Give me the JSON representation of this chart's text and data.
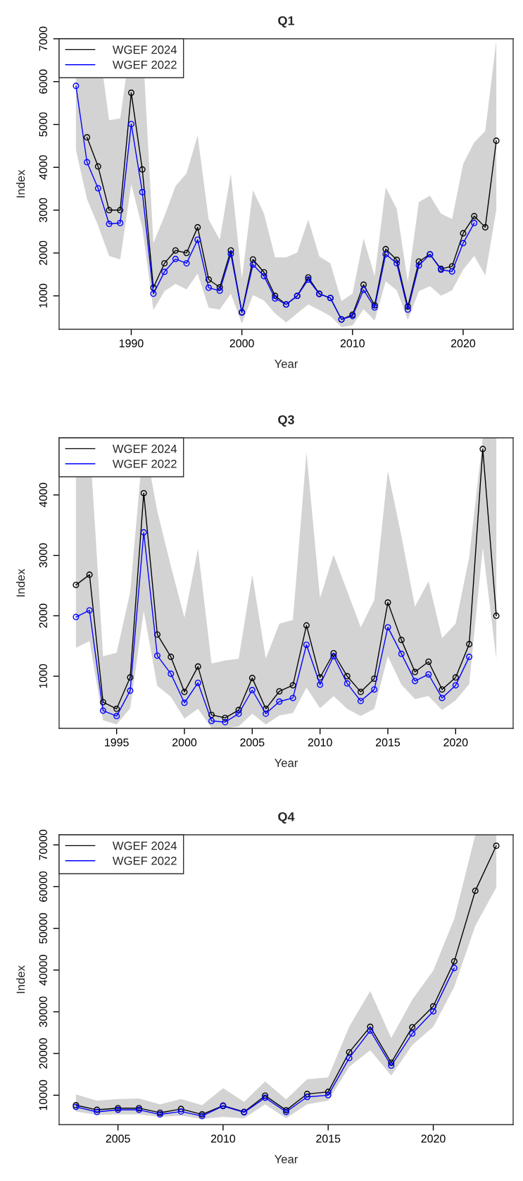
{
  "chart_data": [
    {
      "type": "line",
      "title": "Q1",
      "xlabel": "Year",
      "ylabel": "Index",
      "xlim": [
        1983.48,
        2024.52
      ],
      "ylim": [
        220,
        7000
      ],
      "xticks": [
        1990,
        2000,
        2010,
        2020
      ],
      "yticks": [
        1000,
        2000,
        3000,
        4000,
        5000,
        6000,
        7000
      ],
      "legend": "top left",
      "marker": "circle",
      "grid": false,
      "series": [
        {
          "name": "WGEF 2024",
          "color": "#000000",
          "x": [
            1985,
            1986,
            1987,
            1988,
            1989,
            1990,
            1991,
            1992,
            1993,
            1994,
            1995,
            1996,
            1997,
            1998,
            1999,
            2000,
            2001,
            2002,
            2003,
            2004,
            2005,
            2006,
            2007,
            2008,
            2009,
            2010,
            2011,
            2012,
            2013,
            2014,
            2015,
            2016,
            2017,
            2018,
            2019,
            2020,
            2021,
            2022,
            2023
          ],
          "values": [
            null,
            4700,
            4020,
            3000,
            3000,
            5740,
            3950,
            1190,
            1760,
            2060,
            2000,
            2600,
            1380,
            1200,
            2060,
            620,
            1850,
            1550,
            1000,
            800,
            1000,
            1430,
            1050,
            950,
            450,
            560,
            1260,
            780,
            2090,
            1840,
            750,
            1800,
            1970,
            1630,
            1690,
            2460,
            2860,
            2600,
            4620
          ],
          "lower": [
            4400,
            3260,
            2640,
            1930,
            1850,
            3600,
            2590,
            670,
            1110,
            1280,
            1150,
            1520,
            720,
            680,
            1050,
            350,
            1020,
            890,
            590,
            380,
            590,
            800,
            670,
            530,
            270,
            310,
            690,
            420,
            1340,
            1130,
            440,
            1110,
            1230,
            1000,
            1130,
            1610,
            1930,
            1480,
            3010
          ],
          "upper": [
            7000,
            7000,
            7000,
            5100,
            5140,
            7000,
            7000,
            2230,
            2860,
            3560,
            3860,
            4740,
            2780,
            2310,
            3850,
            1400,
            3460,
            2920,
            1900,
            1900,
            2010,
            2780,
            1920,
            1760,
            880,
            1050,
            2340,
            1460,
            3530,
            3030,
            1320,
            3190,
            3340,
            2920,
            2790,
            4080,
            4580,
            4850,
            6960
          ]
        },
        {
          "name": "WGEF 2022",
          "color": "#0000ff",
          "x": [
            1985,
            1986,
            1987,
            1988,
            1989,
            1990,
            1991,
            1992,
            1993,
            1994,
            1995,
            1996,
            1997,
            1998,
            1999,
            2000,
            2001,
            2002,
            2003,
            2004,
            2005,
            2006,
            2007,
            2008,
            2009,
            2010,
            2011,
            2012,
            2013,
            2014,
            2015,
            2016,
            2017,
            2018,
            2019,
            2020,
            2021
          ],
          "values": [
            5900,
            4120,
            3510,
            2680,
            2700,
            5010,
            3420,
            1050,
            1560,
            1860,
            1760,
            2310,
            1190,
            1120,
            1980,
            610,
            1730,
            1460,
            940,
            800,
            1000,
            1380,
            1040,
            950,
            450,
            530,
            1140,
            730,
            1970,
            1760,
            680,
            1710,
            1970,
            1610,
            1570,
            2230,
            2700
          ]
        }
      ]
    },
    {
      "type": "line",
      "title": "Q3",
      "xlabel": "Year",
      "ylabel": "Index",
      "xlim": [
        1990.76,
        2024.24
      ],
      "ylim": [
        137,
        4945
      ],
      "xticks": [
        1995,
        2000,
        2005,
        2010,
        2015,
        2020
      ],
      "yticks": [
        1000,
        2000,
        3000,
        4000
      ],
      "legend": "top left",
      "marker": "circle",
      "grid": false,
      "series": [
        {
          "name": "WGEF 2024",
          "color": "#000000",
          "x": [
            1992,
            1993,
            1994,
            1995,
            1996,
            1997,
            1998,
            1999,
            2000,
            2001,
            2002,
            2003,
            2004,
            2005,
            2006,
            2007,
            2008,
            2009,
            2010,
            2011,
            2012,
            2013,
            2014,
            2015,
            2016,
            2017,
            2018,
            2019,
            2020,
            2021,
            2022,
            2023
          ],
          "values": [
            2510,
            2680,
            570,
            460,
            980,
            4030,
            1690,
            1320,
            740,
            1160,
            360,
            310,
            440,
            970,
            460,
            750,
            850,
            1840,
            980,
            1380,
            1000,
            740,
            960,
            2220,
            1600,
            1070,
            1240,
            780,
            980,
            1530,
            4760,
            2000
          ],
          "lower": [
            1470,
            1580,
            270,
            200,
            470,
            2080,
            840,
            660,
            300,
            460,
            140,
            140,
            170,
            380,
            200,
            350,
            390,
            810,
            470,
            670,
            460,
            340,
            460,
            1330,
            860,
            620,
            670,
            440,
            600,
            870,
            3130,
            1280
          ],
          "upper": [
            4945,
            4945,
            1330,
            1390,
            2390,
            4945,
            3730,
            2820,
            1970,
            3110,
            1210,
            1260,
            1290,
            2680,
            1290,
            1870,
            1930,
            4710,
            2290,
            3010,
            2410,
            1810,
            2260,
            4400,
            3320,
            2150,
            2570,
            1630,
            1870,
            2970,
            4945,
            4945
          ]
        },
        {
          "name": "WGEF 2022",
          "color": "#0000ff",
          "x": [
            1992,
            1993,
            1994,
            1995,
            1996,
            1997,
            1998,
            1999,
            2000,
            2001,
            2002,
            2003,
            2004,
            2005,
            2006,
            2007,
            2008,
            2009,
            2010,
            2011,
            2012,
            2013,
            2014,
            2015,
            2016,
            2017,
            2018,
            2019,
            2020,
            2021
          ],
          "values": [
            1980,
            2090,
            430,
            340,
            760,
            3380,
            1340,
            1040,
            560,
            890,
            260,
            240,
            380,
            770,
            380,
            580,
            640,
            1520,
            860,
            1330,
            880,
            590,
            780,
            1810,
            1370,
            920,
            1030,
            640,
            850,
            1320
          ]
        }
      ]
    },
    {
      "type": "line",
      "title": "Q4",
      "xlabel": "Year",
      "ylabel": "Index",
      "xlim": [
        2002.2,
        2023.8
      ],
      "ylim": [
        2960,
        72420
      ],
      "xticks": [
        2005,
        2010,
        2015,
        2020
      ],
      "yticks": [
        10000,
        20000,
        30000,
        40000,
        50000,
        60000,
        70000
      ],
      "legend": "top left",
      "marker": "circle",
      "grid": false,
      "series": [
        {
          "name": "WGEF 2024",
          "color": "#000000",
          "x": [
            2003,
            2004,
            2005,
            2006,
            2007,
            2008,
            2009,
            2010,
            2011,
            2012,
            2013,
            2014,
            2015,
            2016,
            2017,
            2018,
            2019,
            2020,
            2021,
            2022,
            2023
          ],
          "values": [
            7600,
            6500,
            6900,
            6900,
            5800,
            6700,
            5400,
            7500,
            6000,
            9900,
            6400,
            10300,
            10800,
            20300,
            26400,
            17800,
            26300,
            31300,
            42100,
            59000,
            69800
          ],
          "lower": [
            6100,
            5300,
            5400,
            5400,
            4800,
            5100,
            4300,
            4800,
            4500,
            7800,
            4500,
            7800,
            8700,
            16800,
            20800,
            14700,
            22000,
            26400,
            36000,
            50600,
            59800
          ],
          "upper": [
            10200,
            8700,
            9100,
            9200,
            7800,
            9100,
            7600,
            11700,
            8400,
            13300,
            9000,
            13800,
            14300,
            26400,
            35000,
            23700,
            32900,
            39900,
            52300,
            72420,
            72420
          ]
        },
        {
          "name": "WGEF 2022",
          "color": "#0000ff",
          "x": [
            2003,
            2004,
            2005,
            2006,
            2007,
            2008,
            2009,
            2010,
            2011,
            2012,
            2013,
            2014,
            2015,
            2016,
            2017,
            2018,
            2019,
            2020,
            2021
          ],
          "values": [
            7200,
            6000,
            6500,
            6500,
            5400,
            6100,
            5000,
            7400,
            5900,
            9400,
            6000,
            9600,
            10000,
            18900,
            25500,
            17100,
            24800,
            30100,
            40500
          ]
        }
      ]
    }
  ]
}
